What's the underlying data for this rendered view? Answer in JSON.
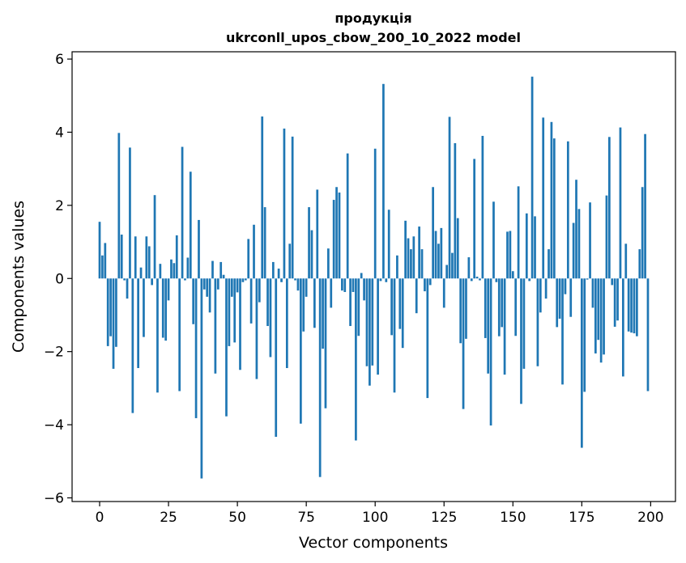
{
  "chart_data": {
    "type": "bar",
    "title": "продукція",
    "subtitle": "ukrconll_upos_cbow_200_10_2022 model",
    "xlabel": "Vector components",
    "ylabel": "Components values",
    "xlim": [
      -10,
      209
    ],
    "ylim": [
      -6.1,
      6.2
    ],
    "xticks": [
      0,
      25,
      50,
      75,
      100,
      125,
      150,
      175,
      200
    ],
    "xtick_labels": [
      "0",
      "25",
      "50",
      "75",
      "100",
      "125",
      "150",
      "175",
      "200"
    ],
    "yticks": [
      -6,
      -4,
      -2,
      0,
      2,
      4,
      6
    ],
    "ytick_labels": [
      "−6",
      "−4",
      "−2",
      "0",
      "2",
      "4",
      "6"
    ],
    "grid": false,
    "color": "#1f77b4",
    "x": [
      0,
      1,
      2,
      3,
      4,
      5,
      6,
      7,
      8,
      9,
      10,
      11,
      12,
      13,
      14,
      15,
      16,
      17,
      18,
      19,
      20,
      21,
      22,
      23,
      24,
      25,
      26,
      27,
      28,
      29,
      30,
      31,
      32,
      33,
      34,
      35,
      36,
      37,
      38,
      39,
      40,
      41,
      42,
      43,
      44,
      45,
      46,
      47,
      48,
      49,
      50,
      51,
      52,
      53,
      54,
      55,
      56,
      57,
      58,
      59,
      60,
      61,
      62,
      63,
      64,
      65,
      66,
      67,
      68,
      69,
      70,
      71,
      72,
      73,
      74,
      75,
      76,
      77,
      78,
      79,
      80,
      81,
      82,
      83,
      84,
      85,
      86,
      87,
      88,
      89,
      90,
      91,
      92,
      93,
      94,
      95,
      96,
      97,
      98,
      99,
      100,
      101,
      102,
      103,
      104,
      105,
      106,
      107,
      108,
      109,
      110,
      111,
      112,
      113,
      114,
      115,
      116,
      117,
      118,
      119,
      120,
      121,
      122,
      123,
      124,
      125,
      126,
      127,
      128,
      129,
      130,
      131,
      132,
      133,
      134,
      135,
      136,
      137,
      138,
      139,
      140,
      141,
      142,
      143,
      144,
      145,
      146,
      147,
      148,
      149,
      150,
      151,
      152,
      153,
      154,
      155,
      156,
      157,
      158,
      159,
      160,
      161,
      162,
      163,
      164,
      165,
      166,
      167,
      168,
      169,
      170,
      171,
      172,
      173,
      174,
      175,
      176,
      177,
      178,
      179,
      180,
      181,
      182,
      183,
      184,
      185,
      186,
      187,
      188,
      189,
      190,
      191,
      192,
      193,
      194,
      195,
      196,
      197,
      198,
      199
    ],
    "values": [
      1.55,
      0.63,
      0.97,
      -1.85,
      -1.58,
      -2.47,
      -1.87,
      3.98,
      1.2,
      -0.05,
      -0.55,
      3.58,
      -3.68,
      1.15,
      -2.45,
      0.3,
      -1.6,
      1.15,
      0.88,
      -0.18,
      2.28,
      -3.12,
      0.4,
      -1.62,
      -1.7,
      -0.6,
      0.52,
      0.42,
      1.18,
      -3.08,
      3.6,
      -0.05,
      0.57,
      2.92,
      -1.25,
      -3.82,
      1.6,
      -5.47,
      -0.3,
      -0.5,
      -0.93,
      0.48,
      -2.6,
      -0.3,
      0.45,
      0.1,
      -3.77,
      -1.85,
      -0.5,
      -1.75,
      -0.38,
      -2.5,
      -0.1,
      -0.05,
      1.08,
      -1.23,
      1.47,
      -2.75,
      -0.65,
      4.43,
      1.95,
      -1.3,
      -2.15,
      0.45,
      -4.33,
      0.27,
      -0.1,
      4.1,
      -2.45,
      0.95,
      3.88,
      -0.05,
      -0.33,
      -3.97,
      -1.45,
      -0.5,
      1.95,
      1.32,
      -1.35,
      2.43,
      -5.43,
      -1.92,
      -3.55,
      0.82,
      -0.8,
      2.15,
      2.5,
      2.35,
      -0.33,
      -0.37,
      3.42,
      -1.3,
      -0.37,
      -4.43,
      -1.57,
      0.15,
      -0.6,
      -2.4,
      -2.93,
      -2.38,
      3.55,
      -2.63,
      -0.07,
      5.32,
      -0.1,
      1.88,
      -1.55,
      -3.12,
      0.63,
      -1.38,
      -1.9,
      1.58,
      1.1,
      0.8,
      1.15,
      -0.95,
      1.42,
      0.8,
      -0.35,
      -3.27,
      -0.18,
      2.5,
      1.3,
      0.95,
      1.38,
      -0.8,
      0.37,
      4.42,
      0.7,
      3.7,
      1.65,
      -1.77,
      -3.57,
      -1.65,
      0.58,
      -0.07,
      3.27,
      0.05,
      -0.05,
      3.9,
      -1.63,
      -2.6,
      -4.02,
      2.1,
      -0.1,
      -1.58,
      -1.33,
      -2.63,
      1.28,
      1.3,
      0.2,
      -1.57,
      2.52,
      -3.43,
      -2.47,
      1.78,
      -0.07,
      5.52,
      1.7,
      -2.4,
      -0.93,
      4.4,
      -0.55,
      0.8,
      4.28,
      3.83,
      -1.33,
      -1.1,
      -2.9,
      -0.43,
      3.75,
      -1.05,
      1.52,
      2.7,
      1.9,
      -4.63,
      -3.1,
      -0.03,
      2.08,
      -0.8,
      -2.05,
      -1.68,
      -2.3,
      -2.08,
      2.27,
      3.87,
      -0.18,
      -1.32,
      -1.15,
      4.13,
      -2.68,
      0.95,
      -1.45,
      -1.48,
      -1.5,
      -1.58,
      0.8,
      2.5,
      3.95,
      -3.08
    ]
  }
}
